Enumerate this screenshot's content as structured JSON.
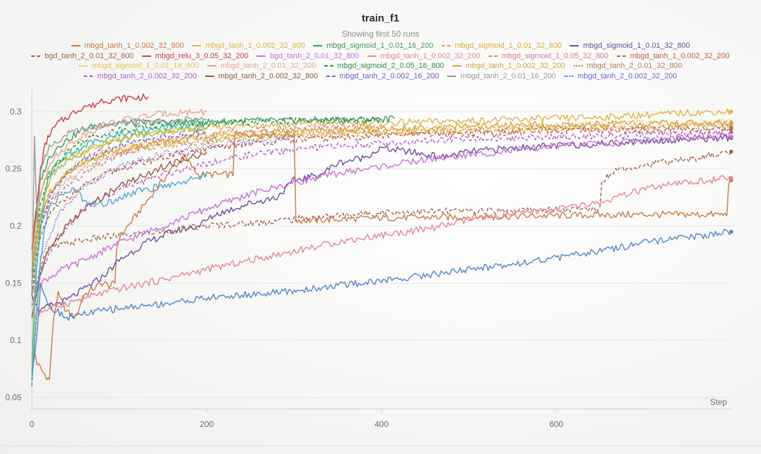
{
  "panel": {
    "title": "train_f1",
    "subtitle": "Showing first 50 runs"
  },
  "chart_data": {
    "type": "line",
    "title": "train_f1",
    "xlabel": "Step",
    "ylabel": "",
    "xlim": [
      0,
      800
    ],
    "ylim": [
      0.04,
      0.32
    ],
    "x_ticks": [
      0,
      200,
      400,
      600
    ],
    "y_ticks": [
      0.05,
      0.1,
      0.15,
      0.2,
      0.25,
      0.3
    ],
    "x_tick_labels": [
      "0",
      "200",
      "400",
      "600"
    ],
    "y_tick_labels": [
      "0.05",
      "0.1",
      "0.15",
      "0.2",
      "0.25",
      "0.3"
    ],
    "grid": "horizontal",
    "legend_position": "top",
    "series": [
      {
        "name": "mbgd_tanh_1_0.002_32_800",
        "color": "#c87a3c",
        "dash": "solid",
        "x": [
          0,
          3,
          6,
          10,
          15,
          20,
          25,
          30,
          40,
          50,
          60,
          70,
          80,
          90,
          95,
          97,
          100,
          110,
          120,
          130,
          140,
          150,
          160,
          175,
          185,
          190,
          200,
          210,
          230,
          232,
          250,
          300,
          302,
          320,
          400,
          500,
          600,
          700,
          795,
          797,
          800
        ],
        "y": [
          0.1,
          0.09,
          0.08,
          0.075,
          0.07,
          0.065,
          0.12,
          0.14,
          0.125,
          0.12,
          0.14,
          0.145,
          0.15,
          0.148,
          0.15,
          0.18,
          0.19,
          0.2,
          0.21,
          0.22,
          0.23,
          0.24,
          0.25,
          0.26,
          0.25,
          0.245,
          0.245,
          0.245,
          0.245,
          0.28,
          0.28,
          0.28,
          0.205,
          0.205,
          0.207,
          0.208,
          0.209,
          0.21,
          0.21,
          0.238,
          0.24
        ]
      },
      {
        "name": "mbgd_tanh_1_0.002_32_800",
        "color": "#e0b341",
        "dash": "solid",
        "x": [
          0,
          3,
          8,
          15,
          25,
          40,
          60,
          80,
          100,
          130,
          160,
          200,
          250,
          300,
          350,
          400,
          450,
          500,
          550,
          600,
          650,
          700,
          750,
          800
        ],
        "y": [
          0.15,
          0.2,
          0.22,
          0.24,
          0.25,
          0.26,
          0.265,
          0.27,
          0.275,
          0.28,
          0.283,
          0.286,
          0.288,
          0.289,
          0.29,
          0.29,
          0.291,
          0.292,
          0.293,
          0.294,
          0.295,
          0.297,
          0.299,
          0.3
        ]
      },
      {
        "name": "mbgd_sigmoid_1_0.01_16_200",
        "color": "#3a9a5b",
        "dash": "solid",
        "x": [
          0,
          3,
          6,
          10,
          15,
          20,
          30,
          40,
          50,
          60,
          70,
          80,
          100,
          120,
          150,
          200,
          250,
          300,
          350,
          400,
          415
        ],
        "y": [
          0.18,
          0.2,
          0.22,
          0.24,
          0.25,
          0.26,
          0.27,
          0.275,
          0.28,
          0.285,
          0.287,
          0.289,
          0.29,
          0.29,
          0.291,
          0.291,
          0.292,
          0.292,
          0.293,
          0.293,
          0.294
        ]
      },
      {
        "name": "mbgd_sigmoid_1_0.01_32_800",
        "color": "#e5a435",
        "dash": "dashed",
        "x": [
          0,
          5,
          10,
          20,
          40,
          60,
          80,
          100,
          150,
          200,
          250,
          300,
          350,
          400,
          450,
          500,
          550,
          600,
          650,
          700,
          750,
          800
        ],
        "y": [
          0.16,
          0.19,
          0.21,
          0.23,
          0.245,
          0.255,
          0.262,
          0.266,
          0.27,
          0.274,
          0.277,
          0.279,
          0.28,
          0.281,
          0.282,
          0.283,
          0.284,
          0.285,
          0.286,
          0.287,
          0.288,
          0.289
        ]
      },
      {
        "name": "mbgd_sigmoid_1_0.01_32_800",
        "color": "#6b4c9a",
        "dash": "solid",
        "x": [
          0,
          5,
          10,
          20,
          40,
          60,
          80,
          100,
          130,
          160,
          190,
          210,
          250,
          280,
          300,
          330,
          350,
          380,
          400,
          430,
          470,
          500,
          550,
          600,
          650,
          700,
          750,
          800
        ],
        "y": [
          0.14,
          0.13,
          0.125,
          0.13,
          0.135,
          0.145,
          0.155,
          0.17,
          0.185,
          0.195,
          0.2,
          0.21,
          0.22,
          0.225,
          0.24,
          0.245,
          0.255,
          0.26,
          0.268,
          0.265,
          0.26,
          0.265,
          0.268,
          0.27,
          0.272,
          0.274,
          0.276,
          0.277
        ]
      },
      {
        "name": "bgd_tanh_2_0.01_32_800",
        "color": "#a0614a",
        "dash": "dashed",
        "x": [
          0,
          3,
          8,
          12,
          20,
          40,
          80,
          120,
          160,
          200,
          260,
          300,
          400,
          500,
          560,
          600,
          650,
          652,
          670,
          700,
          720,
          750,
          780,
          800
        ],
        "y": [
          0.06,
          0.1,
          0.15,
          0.17,
          0.18,
          0.185,
          0.19,
          0.193,
          0.196,
          0.2,
          0.203,
          0.206,
          0.212,
          0.213,
          0.214,
          0.214,
          0.215,
          0.24,
          0.25,
          0.253,
          0.256,
          0.258,
          0.262,
          0.265
        ]
      },
      {
        "name": "mbgd_relu_3_0.05_32_200",
        "color": "#c93b3b",
        "dash": "solid",
        "x": [
          0,
          3,
          6,
          10,
          15,
          20,
          30,
          40,
          50,
          60,
          70,
          80,
          90,
          100,
          110,
          120,
          133
        ],
        "y": [
          0.18,
          0.2,
          0.22,
          0.25,
          0.27,
          0.28,
          0.29,
          0.295,
          0.3,
          0.305,
          0.305,
          0.31,
          0.31,
          0.311,
          0.312,
          0.312,
          0.313
        ]
      },
      {
        "name": "bgd_tanh_2_0.01_32_800",
        "color": "#c86fd3",
        "dash": "solid",
        "x": [
          0,
          10,
          30,
          60,
          100,
          150,
          200,
          250,
          300,
          350,
          400,
          450,
          500,
          550,
          600,
          650,
          700,
          750,
          800
        ],
        "y": [
          0.14,
          0.15,
          0.16,
          0.17,
          0.185,
          0.2,
          0.215,
          0.228,
          0.238,
          0.246,
          0.252,
          0.258,
          0.262,
          0.266,
          0.27,
          0.272,
          0.275,
          0.277,
          0.278
        ]
      },
      {
        "name": "mbgd_tanh_1_0.002_32_200",
        "color": "#e28593",
        "dash": "solid",
        "x": [
          0,
          10,
          30,
          60,
          100,
          150,
          200,
          250,
          300,
          350,
          400,
          450,
          500,
          550,
          600,
          650,
          700,
          750,
          800
        ],
        "y": [
          0.12,
          0.125,
          0.13,
          0.137,
          0.145,
          0.153,
          0.162,
          0.17,
          0.178,
          0.186,
          0.192,
          0.197,
          0.205,
          0.21,
          0.215,
          0.22,
          0.232,
          0.238,
          0.242
        ]
      },
      {
        "name": "mbgd_sigmoid_1_0.05_32_800",
        "color": "#d97a8c",
        "dash": "dashed",
        "x": [
          0,
          5,
          10,
          20,
          40,
          60,
          80,
          100,
          130,
          160,
          200,
          250,
          300,
          350,
          400
        ],
        "y": [
          0.15,
          0.18,
          0.2,
          0.22,
          0.235,
          0.245,
          0.255,
          0.262,
          0.27,
          0.275,
          0.28,
          0.283,
          0.285,
          0.286,
          0.287
        ]
      },
      {
        "name": "mbgd_tanh_1_0.002_32_200",
        "color": "#c05a3a",
        "dash": "dashed",
        "x": [
          0,
          5,
          10,
          20,
          40,
          60,
          80,
          100,
          150,
          200,
          250,
          300,
          350,
          400,
          450,
          500,
          550,
          600,
          650,
          700,
          750,
          800
        ],
        "y": [
          0.14,
          0.17,
          0.19,
          0.21,
          0.225,
          0.235,
          0.243,
          0.25,
          0.26,
          0.267,
          0.272,
          0.275,
          0.277,
          0.279,
          0.28,
          0.281,
          0.282,
          0.283,
          0.283,
          0.284,
          0.284,
          0.285
        ]
      },
      {
        "name": "mbgd_sigmoid_1_0.01_16_800",
        "color": "#e8c34e",
        "dash": "dotted",
        "x": [
          0,
          5,
          10,
          20,
          40,
          60,
          80,
          100,
          150,
          200,
          250,
          300,
          350,
          400,
          450,
          500,
          550,
          600,
          650,
          700,
          750,
          800
        ],
        "y": [
          0.16,
          0.19,
          0.21,
          0.23,
          0.248,
          0.258,
          0.264,
          0.268,
          0.273,
          0.277,
          0.28,
          0.282,
          0.283,
          0.284,
          0.285,
          0.286,
          0.287,
          0.288,
          0.289,
          0.29,
          0.29,
          0.291
        ]
      },
      {
        "name": "mbgd_tanh_2_0.01_32_200",
        "color": "#e8a48b",
        "dash": "solid",
        "x": [
          0,
          5,
          10,
          20,
          40,
          60,
          80,
          100,
          130,
          160,
          200
        ],
        "y": [
          0.16,
          0.2,
          0.23,
          0.255,
          0.27,
          0.28,
          0.288,
          0.292,
          0.296,
          0.299,
          0.3
        ]
      },
      {
        "name": "mbgd_sigmoid_2_0.05_16_800",
        "color": "#2f8d46",
        "dash": "dashed",
        "x": [
          0,
          5,
          10,
          20,
          40,
          60,
          80,
          100,
          130,
          160,
          200,
          250,
          300,
          350,
          400
        ],
        "y": [
          0.15,
          0.19,
          0.22,
          0.245,
          0.265,
          0.275,
          0.28,
          0.284,
          0.287,
          0.289,
          0.29,
          0.291,
          0.292,
          0.292,
          0.293
        ]
      },
      {
        "name": "mbgd_tanh_1_0.002_32_200",
        "color": "#d8a23a",
        "dash": "solid",
        "x": [
          0,
          5,
          10,
          20,
          40,
          60,
          80,
          100,
          150,
          200,
          250,
          300,
          350,
          400,
          450,
          500,
          550,
          600,
          650,
          700,
          750,
          800
        ],
        "y": [
          0.16,
          0.19,
          0.21,
          0.228,
          0.245,
          0.255,
          0.262,
          0.267,
          0.274,
          0.278,
          0.281,
          0.283,
          0.284,
          0.285,
          0.286,
          0.287,
          0.288,
          0.288,
          0.289,
          0.289,
          0.29,
          0.29
        ]
      },
      {
        "name": "mbgd_tanh_2_0.01_32_800",
        "color": "#b08050",
        "dash": "dotted",
        "x": [
          0,
          5,
          10,
          20,
          40,
          60,
          80,
          100,
          150,
          200,
          250,
          300,
          350,
          400,
          450,
          500,
          550,
          600,
          650,
          700,
          750,
          800
        ],
        "y": [
          0.15,
          0.18,
          0.2,
          0.22,
          0.24,
          0.25,
          0.258,
          0.264,
          0.271,
          0.275,
          0.278,
          0.28,
          0.281,
          0.282,
          0.283,
          0.284,
          0.284,
          0.285,
          0.285,
          0.286,
          0.286,
          0.286
        ]
      },
      {
        "name": "mbgd_tanh_2_0.002_32_200",
        "color": "#b25bc9",
        "dash": "dashed",
        "x": [
          0,
          10,
          30,
          60,
          100,
          150,
          200,
          250,
          300,
          350,
          400,
          450,
          500,
          550,
          600,
          650,
          700,
          750,
          800
        ],
        "y": [
          0.13,
          0.16,
          0.19,
          0.215,
          0.232,
          0.245,
          0.255,
          0.262,
          0.267,
          0.27,
          0.272,
          0.274,
          0.276,
          0.277,
          0.278,
          0.279,
          0.28,
          0.281,
          0.282
        ]
      },
      {
        "name": "mbgd_tanh_2_0.002_32_800",
        "color": "#8d5a3d",
        "dash": "solid",
        "x": [
          0,
          5,
          10,
          20,
          40,
          60,
          80,
          100,
          130,
          160,
          190,
          200
        ],
        "y": [
          0.12,
          0.14,
          0.16,
          0.18,
          0.2,
          0.215,
          0.225,
          0.235,
          0.245,
          0.255,
          0.262,
          0.265
        ]
      },
      {
        "name": "mbgd_tanh_2_0.002_16_200",
        "color": "#6d5bd0",
        "dash": "dashed",
        "x": [
          0,
          5,
          10,
          20,
          40,
          60,
          80,
          100,
          130,
          160,
          200
        ],
        "y": [
          0.14,
          0.17,
          0.2,
          0.225,
          0.245,
          0.258,
          0.265,
          0.27,
          0.275,
          0.279,
          0.282
        ]
      },
      {
        "name": "mbgd_tanh_2_0.01_16_200",
        "color": "#9a9a9a",
        "dash": "solid",
        "x": [
          0,
          3,
          6,
          10,
          15,
          20,
          30,
          40,
          60,
          80,
          100,
          130,
          160,
          200
        ],
        "y": [
          0.14,
          0.28,
          0.2,
          0.25,
          0.26,
          0.27,
          0.275,
          0.28,
          0.285,
          0.288,
          0.29,
          0.291,
          0.292,
          0.293
        ]
      },
      {
        "name": "mbgd_tanh_2_0.002_32_200",
        "color": "#6a5fd6",
        "dash": "dotted",
        "x": [
          0,
          10,
          30,
          60,
          100,
          150,
          200,
          250,
          300
        ],
        "y": [
          0.12,
          0.17,
          0.21,
          0.235,
          0.252,
          0.263,
          0.27,
          0.274,
          0.277
        ]
      },
      {
        "name": "",
        "color": "#4e86c5",
        "dash": "solid",
        "x": [
          0,
          5,
          10,
          20,
          30,
          40,
          60,
          80,
          100,
          150,
          200,
          250,
          300,
          350,
          400,
          450,
          500,
          550,
          600,
          650,
          700,
          750,
          800
        ],
        "y": [
          0.065,
          0.1,
          0.15,
          0.13,
          0.125,
          0.12,
          0.123,
          0.126,
          0.128,
          0.132,
          0.137,
          0.14,
          0.143,
          0.148,
          0.152,
          0.157,
          0.162,
          0.167,
          0.172,
          0.178,
          0.185,
          0.19,
          0.195
        ]
      },
      {
        "name": "",
        "color": "#49a5d4",
        "dash": "solid",
        "x": [
          0,
          5,
          10,
          15,
          20,
          30,
          40,
          50,
          60,
          80,
          100,
          120,
          150,
          180,
          200
        ],
        "y": [
          0.065,
          0.12,
          0.17,
          0.2,
          0.215,
          0.225,
          0.23,
          0.232,
          0.222,
          0.218,
          0.225,
          0.23,
          0.235,
          0.24,
          0.245
        ]
      },
      {
        "name": "",
        "color": "#2cb9a6",
        "dash": "solid",
        "x": [
          0,
          5,
          10,
          15,
          20,
          30,
          40,
          60,
          80,
          100,
          130,
          160,
          200
        ],
        "y": [
          0.07,
          0.16,
          0.2,
          0.23,
          0.245,
          0.255,
          0.262,
          0.27,
          0.276,
          0.28,
          0.284,
          0.287,
          0.29
        ]
      },
      {
        "name": "",
        "color": "#9ac04b",
        "dash": "solid",
        "x": [
          0,
          5,
          10,
          15,
          20,
          30,
          40,
          60,
          80,
          100,
          130,
          160,
          200
        ],
        "y": [
          0.08,
          0.18,
          0.21,
          0.228,
          0.24,
          0.25,
          0.257,
          0.265,
          0.272,
          0.276,
          0.28,
          0.283,
          0.286
        ]
      }
    ]
  }
}
